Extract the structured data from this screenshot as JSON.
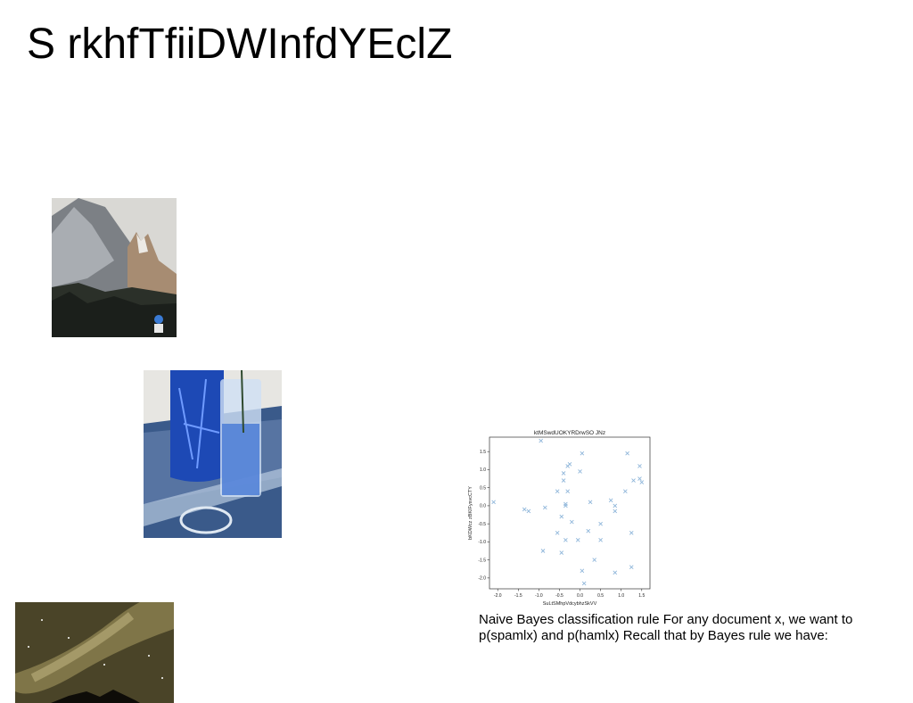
{
  "slide": {
    "title": "S rkhfTfiiDWInfdYEclZ",
    "caption": "Naive Bayes classification rule For any document x, we want to p(spamlx) and p(hamlx) Recall that by Bayes rule we have:"
  },
  "images": [
    {
      "name": "mountain-photo",
      "description_icon": "mountain-landscape"
    },
    {
      "name": "blue-glasses-photo",
      "description_icon": "blue-glassware"
    },
    {
      "name": "night-sky-photo",
      "description_icon": "milky-way"
    }
  ],
  "chart_data": {
    "type": "scatter",
    "title": "ktMSwdUOKYRDrwSO JNz",
    "xlabel": "SuLtSMhpVdcybhzSkVV",
    "ylabel": "bKDWcz zBKIFysvcCTY",
    "xlim": [
      -2.2,
      1.7
    ],
    "ylim": [
      -2.3,
      1.9
    ],
    "xticks": [
      -2.0,
      -1.5,
      -1.0,
      -0.5,
      0.0,
      0.5,
      1.0,
      1.5
    ],
    "yticks": [
      -2.0,
      -1.5,
      -1.0,
      -0.5,
      0.0,
      0.5,
      1.0,
      1.5
    ],
    "xtick_labels": [
      "-2.0",
      "-1.5",
      "-1.0",
      "-0.5",
      "0.0",
      "0.5",
      "1.0",
      "1.5"
    ],
    "ytick_labels": [
      "-2.0",
      "-1.5",
      "-1.0",
      "-0.5",
      "0.0",
      "0.5",
      "1.0",
      "1.5"
    ],
    "marker": "x",
    "color": "#8fb6da",
    "grid": false,
    "points": [
      {
        "x": -0.95,
        "y": 1.8
      },
      {
        "x": 0.05,
        "y": 1.45
      },
      {
        "x": 1.15,
        "y": 1.45
      },
      {
        "x": -0.25,
        "y": 1.15
      },
      {
        "x": -0.3,
        "y": 1.1
      },
      {
        "x": 1.45,
        "y": 1.1
      },
      {
        "x": -0.4,
        "y": 0.9
      },
      {
        "x": 0.0,
        "y": 0.95
      },
      {
        "x": -0.4,
        "y": 0.7
      },
      {
        "x": 1.3,
        "y": 0.7
      },
      {
        "x": 1.45,
        "y": 0.75
      },
      {
        "x": 1.5,
        "y": 0.65
      },
      {
        "x": -0.55,
        "y": 0.4
      },
      {
        "x": -0.3,
        "y": 0.4
      },
      {
        "x": 1.1,
        "y": 0.4
      },
      {
        "x": 0.75,
        "y": 0.15
      },
      {
        "x": 0.25,
        "y": 0.1
      },
      {
        "x": 0.85,
        "y": 0.0
      },
      {
        "x": -2.1,
        "y": 0.1
      },
      {
        "x": -0.35,
        "y": 0.05
      },
      {
        "x": -0.35,
        "y": 0.0
      },
      {
        "x": -0.85,
        "y": -0.05
      },
      {
        "x": -1.35,
        "y": -0.1
      },
      {
        "x": -1.25,
        "y": -0.15
      },
      {
        "x": 0.85,
        "y": -0.15
      },
      {
        "x": -0.45,
        "y": -0.3
      },
      {
        "x": -0.2,
        "y": -0.45
      },
      {
        "x": 0.5,
        "y": -0.5
      },
      {
        "x": 0.2,
        "y": -0.7
      },
      {
        "x": -0.55,
        "y": -0.75
      },
      {
        "x": 1.25,
        "y": -0.75
      },
      {
        "x": -0.35,
        "y": -0.95
      },
      {
        "x": -0.05,
        "y": -0.95
      },
      {
        "x": 0.5,
        "y": -0.95
      },
      {
        "x": -0.9,
        "y": -1.25
      },
      {
        "x": -0.45,
        "y": -1.3
      },
      {
        "x": 0.35,
        "y": -1.5
      },
      {
        "x": 1.25,
        "y": -1.7
      },
      {
        "x": 0.05,
        "y": -1.8
      },
      {
        "x": 0.85,
        "y": -1.85
      },
      {
        "x": 0.1,
        "y": -2.15
      }
    ]
  }
}
